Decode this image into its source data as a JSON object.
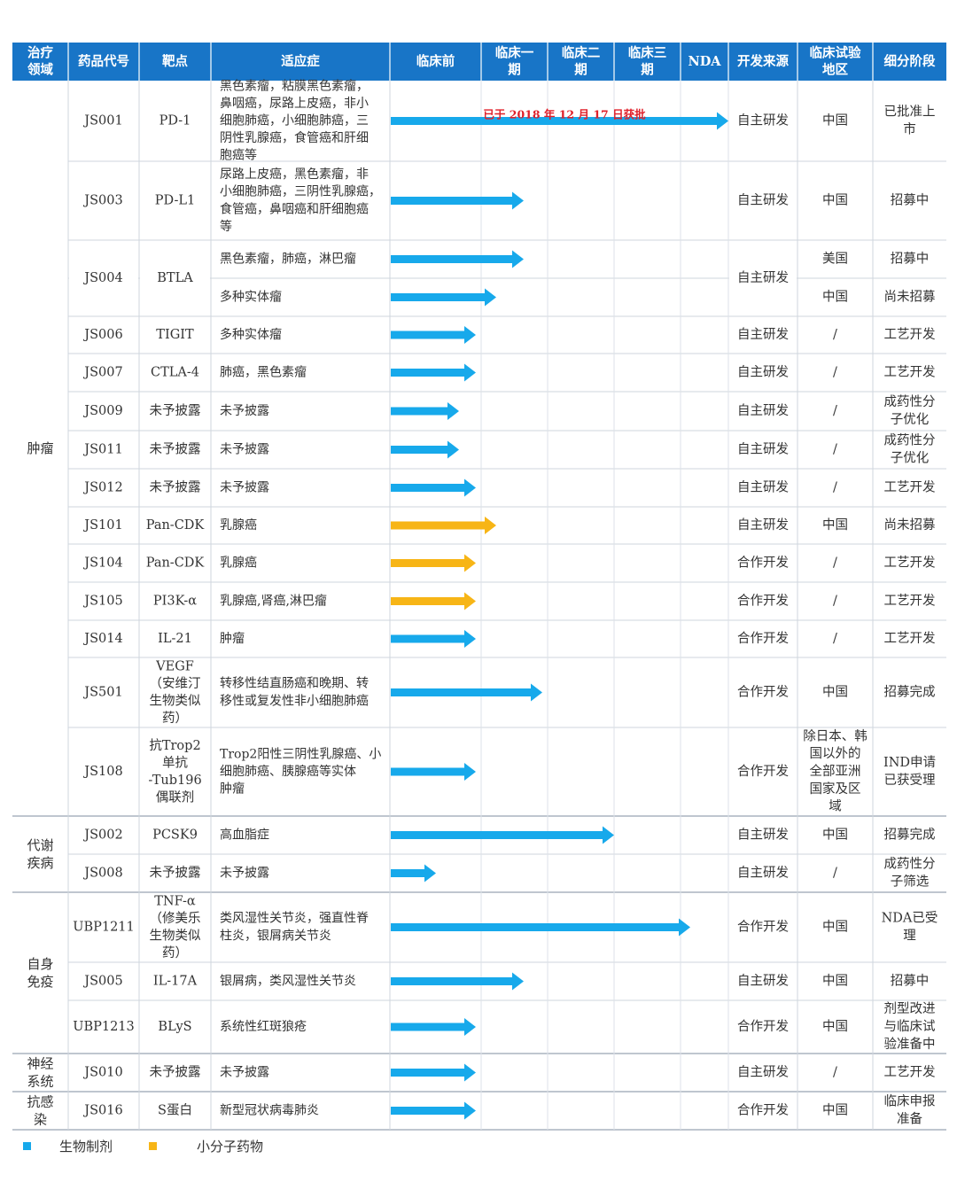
{
  "colors": {
    "header_bg": "#1875c7",
    "header_text": "#ffffff",
    "biologic": "#17a9eb",
    "small_molecule": "#f7b516",
    "approved_note": "#e0202a"
  },
  "header": {
    "area": [
      "治疗",
      "领域"
    ],
    "code": "药品代号",
    "target": "靶点",
    "indication": "适应症",
    "preclinical": "临床前",
    "p1": [
      "临床一",
      "期"
    ],
    "p2": [
      "临床二",
      "期"
    ],
    "p3": [
      "临床三",
      "期"
    ],
    "nda": "NDA",
    "source": "开发来源",
    "region": [
      "临床试验",
      "地区"
    ],
    "stage": "细分阶段"
  },
  "areas": [
    {
      "lines": [
        "肿瘤"
      ]
    },
    {
      "lines": [
        "代谢",
        "疾病"
      ]
    },
    {
      "lines": [
        "自身",
        "免疫"
      ]
    },
    {
      "lines": [
        "神经",
        "系统"
      ]
    },
    {
      "lines": [
        "抗感",
        "染"
      ]
    }
  ],
  "rows": [
    {
      "code": "JS001",
      "target": [
        "PD-1"
      ],
      "indication": [
        "黑色素瘤，粘膜黑色素瘤，",
        "鼻咽癌，尿路上皮癌，非小",
        "细胞肺癌，小细胞肺癌，三",
        "阴性乳腺癌，食管癌和肝细",
        "胞癌等"
      ],
      "bar": "bio",
      "bar_end": "NDA",
      "source": "自主研发",
      "region": [
        "中国"
      ],
      "stage": [
        "已批准上",
        "市"
      ],
      "note": "已于 2018 年 12 月 17 日获批"
    },
    {
      "code": "JS003",
      "target": [
        "PD-L1"
      ],
      "indication": [
        "尿路上皮癌，黑色素瘤，非",
        "小细胞肺癌，三阴性乳腺癌，",
        "食管癌，鼻咽癌和肝细胞癌",
        "等"
      ],
      "bar": "bio",
      "bar_end": "p1",
      "source": "自主研发",
      "region": [
        "中国"
      ],
      "stage": [
        "招募中"
      ]
    },
    {
      "code": "JS004",
      "target": [
        "BTLA"
      ],
      "indication": [
        "黑色素瘤，肺癌，淋巴瘤"
      ],
      "bar": "bio",
      "bar_end": "p1",
      "source": "自主研发",
      "region": [
        "美国"
      ],
      "stage": [
        "招募中"
      ]
    },
    {
      "code": "",
      "target": [],
      "indication": [
        "多种实体瘤"
      ],
      "bar": "bio",
      "bar_end": "p1-early",
      "source": "",
      "region": [
        "中国"
      ],
      "stage": [
        "尚未招募"
      ]
    },
    {
      "code": "JS006",
      "target": [
        "TIGIT"
      ],
      "indication": [
        "多种实体瘤"
      ],
      "bar": "bio",
      "bar_end": "pre",
      "source": "自主研发",
      "region": [
        "/"
      ],
      "stage": [
        "工艺开发"
      ]
    },
    {
      "code": "JS007",
      "target": [
        "CTLA-4"
      ],
      "indication": [
        "肺癌，黑色素瘤"
      ],
      "bar": "bio",
      "bar_end": "pre",
      "source": "自主研发",
      "region": [
        "/"
      ],
      "stage": [
        "工艺开发"
      ]
    },
    {
      "code": "JS009",
      "target": [
        "未予披露"
      ],
      "indication": [
        "未予披露"
      ],
      "bar": "bio",
      "bar_end": "pre-mid",
      "source": "自主研发",
      "region": [
        "/"
      ],
      "stage": [
        "成药性分",
        "子优化"
      ]
    },
    {
      "code": "JS011",
      "target": [
        "未予披露"
      ],
      "indication": [
        "未予披露"
      ],
      "bar": "bio",
      "bar_end": "pre-mid",
      "source": "自主研发",
      "region": [
        "/"
      ],
      "stage": [
        "成药性分",
        "子优化"
      ]
    },
    {
      "code": "JS012",
      "target": [
        "未予披露"
      ],
      "indication": [
        "未予披露"
      ],
      "bar": "bio",
      "bar_end": "pre",
      "source": "自主研发",
      "region": [
        "/"
      ],
      "stage": [
        "工艺开发"
      ]
    },
    {
      "code": "JS101",
      "target": [
        "Pan-CDK"
      ],
      "indication": [
        "乳腺癌"
      ],
      "bar": "small",
      "bar_end": "p1-early",
      "source": "自主研发",
      "region": [
        "中国"
      ],
      "stage": [
        "尚未招募"
      ]
    },
    {
      "code": "JS104",
      "target": [
        "Pan-CDK"
      ],
      "indication": [
        "乳腺癌"
      ],
      "bar": "small",
      "bar_end": "pre",
      "source": "合作开发",
      "region": [
        "/"
      ],
      "stage": [
        "工艺开发"
      ]
    },
    {
      "code": "JS105",
      "target": [
        "PI3K-α"
      ],
      "indication": [
        "乳腺癌,肾癌,淋巴瘤"
      ],
      "bar": "small",
      "bar_end": "pre",
      "source": "合作开发",
      "region": [
        "/"
      ],
      "stage": [
        "工艺开发"
      ]
    },
    {
      "code": "JS014",
      "target": [
        "IL-21"
      ],
      "indication": [
        "肿瘤"
      ],
      "bar": "bio",
      "bar_end": "pre",
      "source": "合作开发",
      "region": [
        "/"
      ],
      "stage": [
        "工艺开发"
      ]
    },
    {
      "code": "JS501",
      "target": [
        "VEGF",
        "（安维汀",
        "生物类似",
        "药）"
      ],
      "indication": [
        "转移性结直肠癌和晚期、转",
        "移性或复发性非小细胞肺癌"
      ],
      "bar": "bio",
      "bar_end": "p1-late",
      "source": "合作开发",
      "region": [
        "中国"
      ],
      "stage": [
        "招募完成"
      ]
    },
    {
      "code": "JS108",
      "target": [
        "抗Trop2",
        "单抗",
        "-Tub196",
        "偶联剂"
      ],
      "indication": [
        "Trop2阳性三阴性乳腺癌、小",
        "细胞肺癌、胰腺癌等实体",
        "肿瘤"
      ],
      "bar": "bio",
      "bar_end": "pre",
      "source": "合作开发",
      "region": [
        "除日本、韩",
        "国以外的",
        "全部亚洲",
        "国家及区",
        "域"
      ],
      "stage": [
        "IND申请",
        "已获受理"
      ]
    },
    {
      "code": "JS002",
      "target": [
        "PCSK9"
      ],
      "indication": [
        "高血脂症"
      ],
      "bar": "bio",
      "bar_end": "p2",
      "source": "自主研发",
      "region": [
        "中国"
      ],
      "stage": [
        "招募完成"
      ]
    },
    {
      "code": "JS008",
      "target": [
        "未予披露"
      ],
      "indication": [
        "未予披露"
      ],
      "bar": "bio",
      "bar_end": "pre-early",
      "source": "自主研发",
      "region": [
        "/"
      ],
      "stage": [
        "成药性分",
        "子筛选"
      ]
    },
    {
      "code": "UBP1211",
      "target": [
        "TNF-α",
        "（修美乐",
        "生物类似",
        "药）"
      ],
      "indication": [
        "类风湿性关节炎，强直性脊",
        "柱炎，银屑病关节炎"
      ],
      "bar": "bio",
      "bar_end": "p3",
      "source": "合作开发",
      "region": [
        "中国"
      ],
      "stage": [
        "NDA已受",
        "理"
      ]
    },
    {
      "code": "JS005",
      "target": [
        "IL-17A"
      ],
      "indication": [
        "银屑病，类风湿性关节炎"
      ],
      "bar": "bio",
      "bar_end": "p1",
      "source": "自主研发",
      "region": [
        "中国"
      ],
      "stage": [
        "招募中"
      ]
    },
    {
      "code": "UBP1213",
      "target": [
        "BLyS"
      ],
      "indication": [
        "系统性红斑狼疮"
      ],
      "bar": "bio",
      "bar_end": "pre",
      "source": "合作开发",
      "region": [
        "中国"
      ],
      "stage": [
        "剂型改进",
        "与临床试",
        "验准备中"
      ]
    },
    {
      "code": "JS010",
      "target": [
        "未予披露"
      ],
      "indication": [
        "未予披露"
      ],
      "bar": "bio",
      "bar_end": "pre",
      "source": "自主研发",
      "region": [
        "/"
      ],
      "stage": [
        "工艺开发"
      ]
    },
    {
      "code": "JS016",
      "target": [
        "S蛋白"
      ],
      "indication": [
        "新型冠状病毒肺炎"
      ],
      "bar": "bio",
      "bar_end": "pre",
      "source": "合作开发",
      "region": [
        "中国"
      ],
      "stage": [
        "临床申报",
        "准备"
      ]
    }
  ],
  "legend": {
    "biologic": "生物制剂",
    "small_molecule": "小分子药物"
  }
}
